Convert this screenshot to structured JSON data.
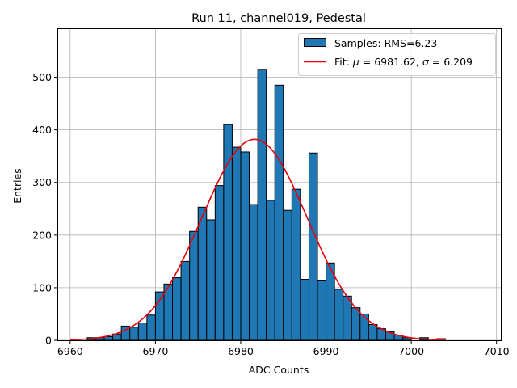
{
  "chart_data": {
    "type": "bar",
    "title": "Run 11, channel019, Pedestal",
    "xlabel": "ADC Counts",
    "ylabel": "Entries",
    "xlim": [
      6958.5,
      7010.5
    ],
    "ylim": [
      0,
      593
    ],
    "xticks": [
      6960,
      6970,
      6980,
      6990,
      7000,
      7010
    ],
    "xtick_labels": [
      "6960",
      "6970",
      "6980",
      "6990",
      "7000",
      "7010"
    ],
    "yticks": [
      0,
      100,
      200,
      300,
      400,
      500
    ],
    "ytick_labels": [
      "0",
      "100",
      "200",
      "300",
      "400",
      "500"
    ],
    "grid": true,
    "legend_position": "top-right",
    "colors": {
      "bars": "#1f77b4",
      "bar_edge": "#000000",
      "fit": "#e8000b",
      "grid": "#b0b0b0"
    },
    "series": [
      {
        "name": "Samples: RMS=6.23",
        "kind": "histogram",
        "bin_edges": [
          6962,
          6963,
          6964,
          6965,
          6966,
          6967,
          6968,
          6969,
          6970,
          6971,
          6972,
          6973,
          6974,
          6975,
          6976,
          6977,
          6978,
          6979,
          6980,
          6981,
          6982,
          6983,
          6984,
          6985,
          6986,
          6987,
          6988,
          6989,
          6990,
          6991,
          6992,
          6993,
          6994,
          6995,
          6996,
          6997,
          6998,
          6999,
          7000,
          7001,
          7002,
          7003,
          7004
        ],
        "values": [
          5,
          5,
          7,
          12,
          27,
          25,
          33,
          48,
          92,
          107,
          119,
          150,
          207,
          253,
          229,
          294,
          410,
          367,
          358,
          258,
          515,
          266,
          485,
          247,
          287,
          116,
          356,
          113,
          147,
          97,
          84,
          62,
          50,
          30,
          22,
          16,
          10,
          5,
          0,
          5,
          0,
          3
        ]
      },
      {
        "name": "Fit: μ = 6981.62, σ = 6.209",
        "kind": "gaussian_fit",
        "mu": 6981.62,
        "sigma": 6.209,
        "amplitude": 382,
        "x_range": [
          6960,
          7004
        ]
      }
    ],
    "legend": [
      {
        "label": "Samples: RMS=6.23"
      },
      {
        "label_prefix": "Fit: ",
        "label_mid1": " = 6981.62, ",
        "label_mid2": " = 6.209",
        "mu": "μ",
        "sigma": "σ"
      }
    ]
  }
}
